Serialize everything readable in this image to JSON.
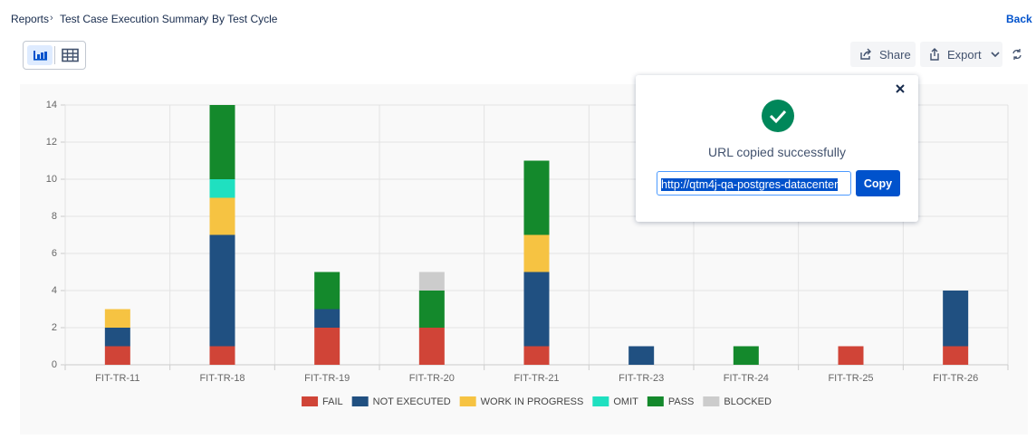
{
  "breadcrumb": [
    "Reports",
    "Test Case Execution Summary",
    "By Test Cycle"
  ],
  "back": "Back",
  "share": "Share",
  "export": "Export",
  "popup": {
    "message": "URL copied successfully",
    "url": "http://qtm4j-qa-postgres-datacenter",
    "button": "Copy"
  },
  "chart_data": {
    "type": "bar",
    "stacked": true,
    "categories": [
      "FIT-TR-11",
      "FIT-TR-18",
      "FIT-TR-19",
      "FIT-TR-20",
      "FIT-TR-21",
      "FIT-TR-23",
      "FIT-TR-24",
      "FIT-TR-25",
      "FIT-TR-26"
    ],
    "series": [
      {
        "name": "FAIL",
        "color": "#d04437",
        "values": [
          1,
          1,
          2,
          2,
          1,
          0,
          0,
          1,
          1
        ]
      },
      {
        "name": "NOT EXECUTED",
        "color": "#205081",
        "values": [
          1,
          6,
          1,
          0,
          4,
          1,
          0,
          0,
          3
        ]
      },
      {
        "name": "WORK IN PROGRESS",
        "color": "#f6c342",
        "values": [
          1,
          2,
          0,
          0,
          2,
          0,
          0,
          0,
          0
        ]
      },
      {
        "name": "OMIT",
        "color": "#1fe0c0",
        "values": [
          0,
          1,
          0,
          0,
          0,
          0,
          0,
          0,
          0
        ]
      },
      {
        "name": "PASS",
        "color": "#14892c",
        "values": [
          0,
          4,
          2,
          2,
          4,
          0,
          1,
          0,
          0
        ]
      },
      {
        "name": "BLOCKED",
        "color": "#cccccc",
        "values": [
          0,
          0,
          0,
          1,
          0,
          0,
          0,
          0,
          0
        ]
      }
    ],
    "ylim": [
      0,
      14
    ],
    "yticks": [
      0,
      2,
      4,
      6,
      8,
      10,
      12,
      14
    ],
    "grid": true,
    "legend": "bottom"
  }
}
